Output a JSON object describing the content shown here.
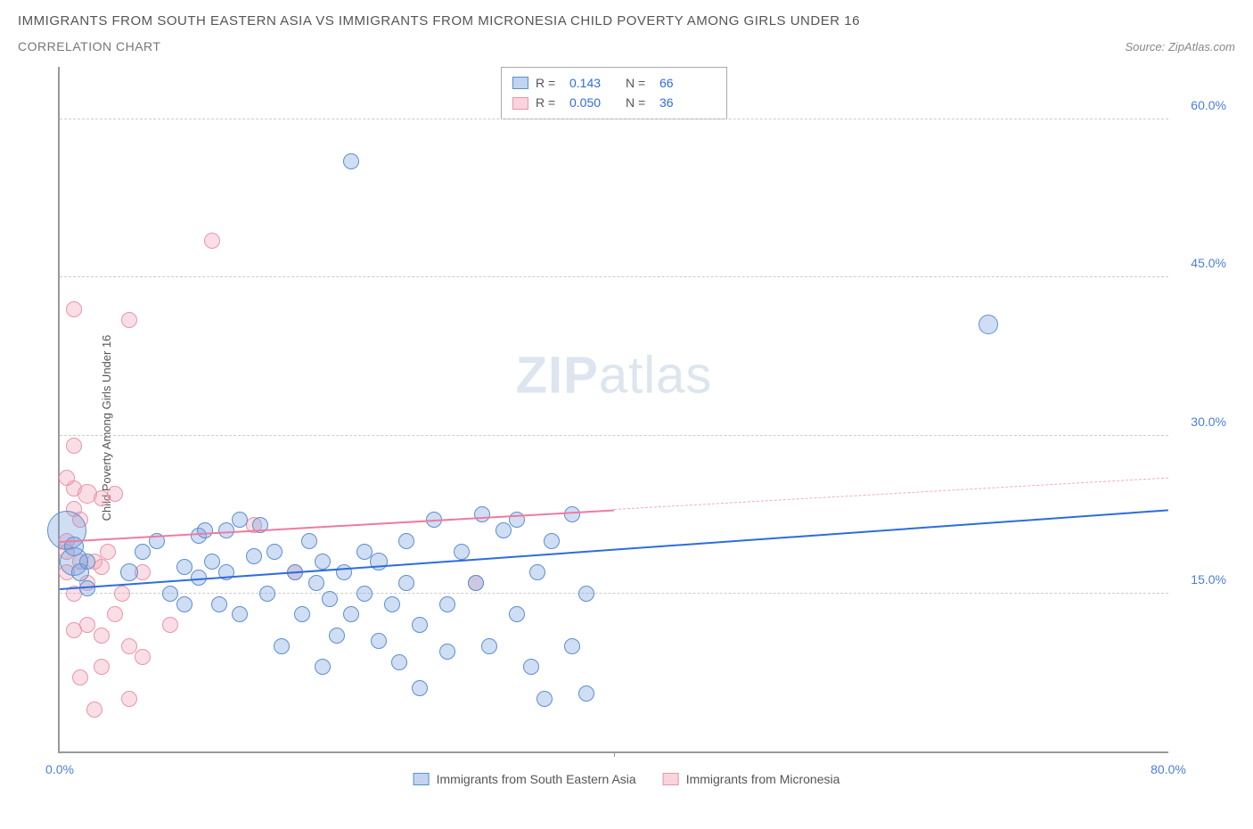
{
  "header": {
    "title": "IMMIGRANTS FROM SOUTH EASTERN ASIA VS IMMIGRANTS FROM MICRONESIA CHILD POVERTY AMONG GIRLS UNDER 16",
    "subtitle": "CORRELATION CHART",
    "source": "Source: ZipAtlas.com"
  },
  "chart": {
    "type": "scatter",
    "ylabel": "Child Poverty Among Girls Under 16",
    "watermark_bold": "ZIP",
    "watermark_light": "atlas",
    "xlim": [
      0,
      80
    ],
    "ylim": [
      0,
      65
    ],
    "yticks": [
      {
        "v": 15.0,
        "label": "15.0%"
      },
      {
        "v": 30.0,
        "label": "30.0%"
      },
      {
        "v": 45.0,
        "label": "45.0%"
      },
      {
        "v": 60.0,
        "label": "60.0%"
      }
    ],
    "xticks": [
      {
        "v": 0,
        "label": "0.0%"
      },
      {
        "v": 40,
        "label": ""
      },
      {
        "v": 80,
        "label": "80.0%"
      }
    ],
    "grid_color": "#cccccc",
    "background_color": "#ffffff",
    "axis_color": "#999999",
    "legend_top": [
      {
        "color": "blue",
        "r_label": "R =",
        "r_val": "0.143",
        "n_label": "N =",
        "n_val": "66"
      },
      {
        "color": "pink",
        "r_label": "R =",
        "r_val": "0.050",
        "n_label": "N =",
        "n_val": "36"
      }
    ],
    "legend_bottom": [
      {
        "color": "blue",
        "label": "Immigrants from South Eastern Asia"
      },
      {
        "color": "pink",
        "label": "Immigrants from Micronesia"
      }
    ],
    "series": {
      "blue": {
        "fill": "rgba(120,160,220,0.35)",
        "stroke": "#5a8fd0",
        "trend": {
          "x1": 0,
          "y1": 15.5,
          "x2": 80,
          "y2": 23.0,
          "color": "#2d6cdf"
        },
        "points": [
          {
            "x": 21,
            "y": 56,
            "r": 9
          },
          {
            "x": 67,
            "y": 40.5,
            "r": 11
          },
          {
            "x": 0.5,
            "y": 21,
            "r": 22
          },
          {
            "x": 1,
            "y": 18,
            "r": 16
          },
          {
            "x": 1,
            "y": 19.5,
            "r": 11
          },
          {
            "x": 1.5,
            "y": 17,
            "r": 10
          },
          {
            "x": 2,
            "y": 18,
            "r": 9
          },
          {
            "x": 2,
            "y": 15.5,
            "r": 9
          },
          {
            "x": 5,
            "y": 17,
            "r": 10
          },
          {
            "x": 6,
            "y": 19,
            "r": 9
          },
          {
            "x": 7,
            "y": 20,
            "r": 9
          },
          {
            "x": 8,
            "y": 15,
            "r": 9
          },
          {
            "x": 9,
            "y": 17.5,
            "r": 9
          },
          {
            "x": 9,
            "y": 14,
            "r": 9
          },
          {
            "x": 10,
            "y": 20.5,
            "r": 9
          },
          {
            "x": 10,
            "y": 16.5,
            "r": 9
          },
          {
            "x": 11,
            "y": 18,
            "r": 9
          },
          {
            "x": 11.5,
            "y": 14,
            "r": 9
          },
          {
            "x": 12,
            "y": 21,
            "r": 9
          },
          {
            "x": 12,
            "y": 17,
            "r": 9
          },
          {
            "x": 13,
            "y": 13,
            "r": 9
          },
          {
            "x": 13,
            "y": 22,
            "r": 9
          },
          {
            "x": 14,
            "y": 18.5,
            "r": 9
          },
          {
            "x": 15,
            "y": 15,
            "r": 9
          },
          {
            "x": 15.5,
            "y": 19,
            "r": 9
          },
          {
            "x": 16,
            "y": 10,
            "r": 9
          },
          {
            "x": 17,
            "y": 17,
            "r": 9
          },
          {
            "x": 17.5,
            "y": 13,
            "r": 9
          },
          {
            "x": 18,
            "y": 20,
            "r": 9
          },
          {
            "x": 18.5,
            "y": 16,
            "r": 9
          },
          {
            "x": 19,
            "y": 18,
            "r": 9
          },
          {
            "x": 19,
            "y": 8,
            "r": 9
          },
          {
            "x": 19.5,
            "y": 14.5,
            "r": 9
          },
          {
            "x": 20,
            "y": 11,
            "r": 9
          },
          {
            "x": 20.5,
            "y": 17,
            "r": 9
          },
          {
            "x": 21,
            "y": 13,
            "r": 9
          },
          {
            "x": 22,
            "y": 19,
            "r": 9
          },
          {
            "x": 22,
            "y": 15,
            "r": 9
          },
          {
            "x": 23,
            "y": 10.5,
            "r": 9
          },
          {
            "x": 23,
            "y": 18,
            "r": 10
          },
          {
            "x": 24,
            "y": 14,
            "r": 9
          },
          {
            "x": 24.5,
            "y": 8.5,
            "r": 9
          },
          {
            "x": 25,
            "y": 16,
            "r": 9
          },
          {
            "x": 26,
            "y": 12,
            "r": 9
          },
          {
            "x": 26,
            "y": 6,
            "r": 9
          },
          {
            "x": 27,
            "y": 22,
            "r": 9
          },
          {
            "x": 28,
            "y": 14,
            "r": 9
          },
          {
            "x": 28,
            "y": 9.5,
            "r": 9
          },
          {
            "x": 29,
            "y": 19,
            "r": 9
          },
          {
            "x": 30,
            "y": 16,
            "r": 9
          },
          {
            "x": 30.5,
            "y": 22.5,
            "r": 9
          },
          {
            "x": 31,
            "y": 10,
            "r": 9
          },
          {
            "x": 32,
            "y": 21,
            "r": 9
          },
          {
            "x": 33,
            "y": 13,
            "r": 9
          },
          {
            "x": 33,
            "y": 22,
            "r": 9
          },
          {
            "x": 34,
            "y": 8,
            "r": 9
          },
          {
            "x": 34.5,
            "y": 17,
            "r": 9
          },
          {
            "x": 35,
            "y": 5,
            "r": 9
          },
          {
            "x": 35.5,
            "y": 20,
            "r": 9
          },
          {
            "x": 37,
            "y": 22.5,
            "r": 9
          },
          {
            "x": 37,
            "y": 10,
            "r": 9
          },
          {
            "x": 38,
            "y": 15,
            "r": 9
          },
          {
            "x": 38,
            "y": 5.5,
            "r": 9
          },
          {
            "x": 10.5,
            "y": 21,
            "r": 9
          },
          {
            "x": 14.5,
            "y": 21.5,
            "r": 9
          },
          {
            "x": 25,
            "y": 20,
            "r": 9
          }
        ]
      },
      "pink": {
        "fill": "rgba(240,160,180,0.35)",
        "stroke": "#e895ab",
        "trend_solid": {
          "x1": 0,
          "y1": 20,
          "x2": 40,
          "y2": 23,
          "color": "#f07aa0"
        },
        "trend_dash": {
          "x1": 40,
          "y1": 23,
          "x2": 80,
          "y2": 26,
          "color": "#f4aabf"
        },
        "points": [
          {
            "x": 1,
            "y": 42,
            "r": 9
          },
          {
            "x": 5,
            "y": 41,
            "r": 9
          },
          {
            "x": 11,
            "y": 48.5,
            "r": 9
          },
          {
            "x": 1,
            "y": 29,
            "r": 9
          },
          {
            "x": 0.5,
            "y": 26,
            "r": 9
          },
          {
            "x": 1,
            "y": 25,
            "r": 9
          },
          {
            "x": 2,
            "y": 24.5,
            "r": 11
          },
          {
            "x": 1,
            "y": 23,
            "r": 9
          },
          {
            "x": 1.5,
            "y": 22,
            "r": 9
          },
          {
            "x": 0.5,
            "y": 20,
            "r": 9
          },
          {
            "x": 0.5,
            "y": 19,
            "r": 9
          },
          {
            "x": 1.5,
            "y": 18,
            "r": 9
          },
          {
            "x": 0.5,
            "y": 17,
            "r": 9
          },
          {
            "x": 2.5,
            "y": 18,
            "r": 9
          },
          {
            "x": 1,
            "y": 15,
            "r": 9
          },
          {
            "x": 2,
            "y": 16,
            "r": 9
          },
          {
            "x": 3,
            "y": 17.5,
            "r": 9
          },
          {
            "x": 3.5,
            "y": 19,
            "r": 9
          },
          {
            "x": 4,
            "y": 13,
            "r": 9
          },
          {
            "x": 2,
            "y": 12,
            "r": 9
          },
          {
            "x": 1,
            "y": 11.5,
            "r": 9
          },
          {
            "x": 3,
            "y": 11,
            "r": 9
          },
          {
            "x": 5,
            "y": 10,
            "r": 9
          },
          {
            "x": 3,
            "y": 8,
            "r": 9
          },
          {
            "x": 6,
            "y": 9,
            "r": 9
          },
          {
            "x": 1.5,
            "y": 7,
            "r": 9
          },
          {
            "x": 5,
            "y": 5,
            "r": 9
          },
          {
            "x": 4.5,
            "y": 15,
            "r": 9
          },
          {
            "x": 6,
            "y": 17,
            "r": 9
          },
          {
            "x": 3,
            "y": 24,
            "r": 9
          },
          {
            "x": 4,
            "y": 24.5,
            "r": 9
          },
          {
            "x": 8,
            "y": 12,
            "r": 9
          },
          {
            "x": 14,
            "y": 21.5,
            "r": 9
          },
          {
            "x": 17,
            "y": 17,
            "r": 9
          },
          {
            "x": 30,
            "y": 16,
            "r": 9
          },
          {
            "x": 2.5,
            "y": 4,
            "r": 9
          }
        ]
      }
    }
  }
}
